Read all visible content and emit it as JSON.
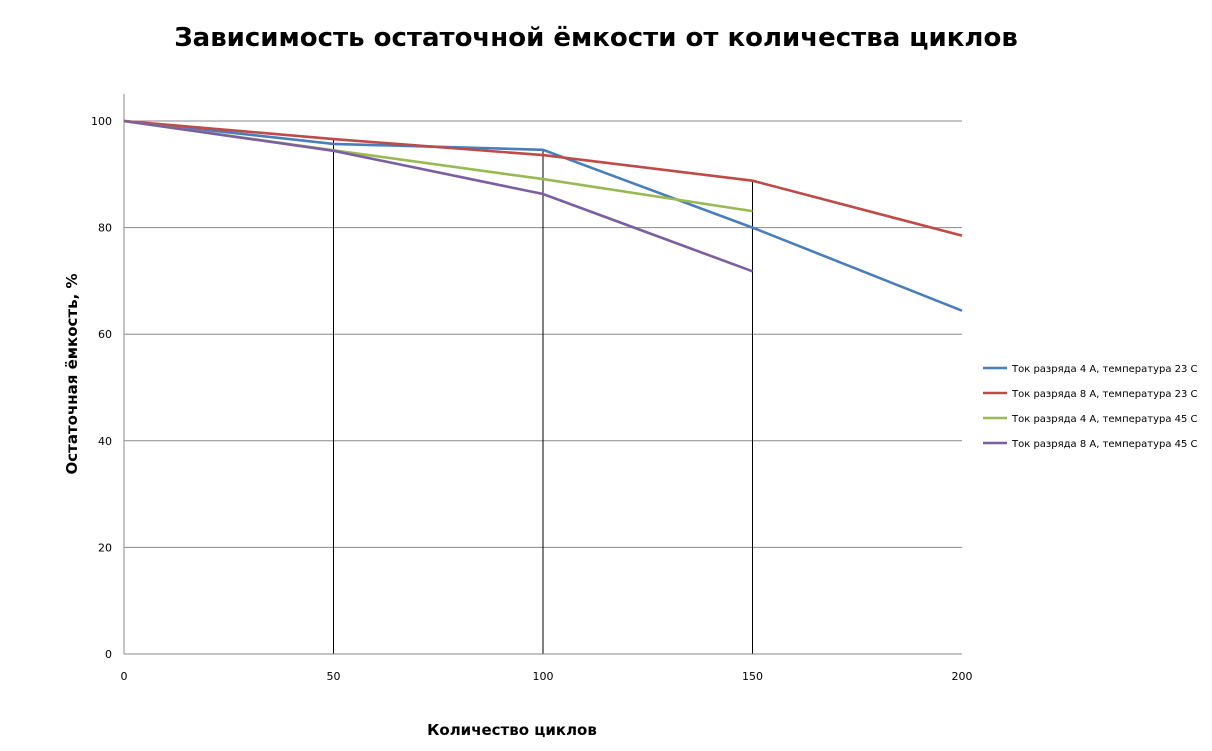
{
  "chart_data": {
    "type": "line",
    "title": "Зависимость остаточной ёмкости от количества циклов",
    "xlabel": "Количество циклов",
    "ylabel": "Остаточная ёмкость, %",
    "x": [
      0,
      50,
      100,
      150,
      200
    ],
    "x_ticks": [
      "0",
      "50",
      "100",
      "150",
      "200"
    ],
    "y_ticks": [
      "0",
      "20",
      "40",
      "60",
      "80",
      "100"
    ],
    "xlim": [
      0,
      200
    ],
    "ylim": [
      0,
      105
    ],
    "grid": "horizontal",
    "drop_lines": [
      50,
      100,
      150
    ],
    "legend_position": "right",
    "series": [
      {
        "name": "Ток разряда 4 А, температура 23 С",
        "color": "#4a7ebb",
        "values": [
          100,
          95.7,
          94.6,
          80,
          64.4
        ]
      },
      {
        "name": "Ток разряда 8 А, температура 23 С",
        "color": "#be4b48",
        "values": [
          100,
          96.6,
          93.6,
          88.8,
          78.5
        ]
      },
      {
        "name": "Ток разряда 4 А, температура 45 С",
        "color": "#98b954",
        "values": [
          100,
          94.5,
          89.1,
          83.1,
          null
        ]
      },
      {
        "name": "Ток разряда 8 А, температура 45 С",
        "color": "#7d5fa0",
        "values": [
          100,
          94.4,
          86.3,
          71.8,
          null
        ]
      }
    ]
  }
}
